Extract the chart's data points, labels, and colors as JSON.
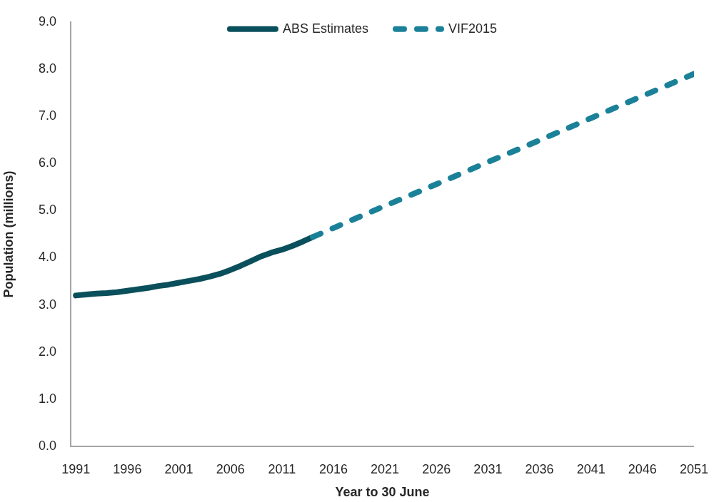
{
  "chart_data": {
    "type": "line",
    "xlabel": "Year to 30 June",
    "ylabel": "Population (millions)",
    "series": [
      {
        "name": "ABS Estimates",
        "color": "#0a4f5c",
        "line_style": "solid",
        "x": [
          1991,
          1992,
          1993,
          1994,
          1995,
          1996,
          1997,
          1998,
          1999,
          2000,
          2001,
          2002,
          2003,
          2004,
          2005,
          2006,
          2007,
          2008,
          2009,
          2010,
          2011,
          2012,
          2013,
          2014
        ],
        "values": [
          3.2,
          3.22,
          3.24,
          3.25,
          3.27,
          3.3,
          3.33,
          3.36,
          3.4,
          3.43,
          3.47,
          3.51,
          3.55,
          3.6,
          3.66,
          3.74,
          3.83,
          3.93,
          4.03,
          4.11,
          4.17,
          4.25,
          4.34,
          4.44
        ]
      },
      {
        "name": "VIF2015",
        "color": "#1b8199",
        "line_style": "dashed",
        "x": [
          2014,
          2016,
          2021,
          2026,
          2031,
          2036,
          2041,
          2046,
          2051
        ],
        "values": [
          4.44,
          4.63,
          5.1,
          5.56,
          6.03,
          6.49,
          6.96,
          7.43,
          7.9
        ]
      }
    ],
    "xlim": [
      1990.5,
      2051
    ],
    "xticks": [
      1991,
      1996,
      2001,
      2006,
      2011,
      2016,
      2021,
      2026,
      2031,
      2036,
      2041,
      2046,
      2051
    ],
    "ylim": [
      0,
      9
    ],
    "yticks": [
      {
        "value": 0,
        "label": "0.0"
      },
      {
        "value": 1,
        "label": "1.0"
      },
      {
        "value": 2,
        "label": "2.0"
      },
      {
        "value": 3,
        "label": "3.0"
      },
      {
        "value": 4,
        "label": "4.0"
      },
      {
        "value": 5,
        "label": "5.0"
      },
      {
        "value": 6,
        "label": "6.0"
      },
      {
        "value": 7,
        "label": "7.0"
      },
      {
        "value": 8,
        "label": "8.0"
      },
      {
        "value": 9,
        "label": "9.0"
      }
    ],
    "legend": "top",
    "marker": "none"
  }
}
